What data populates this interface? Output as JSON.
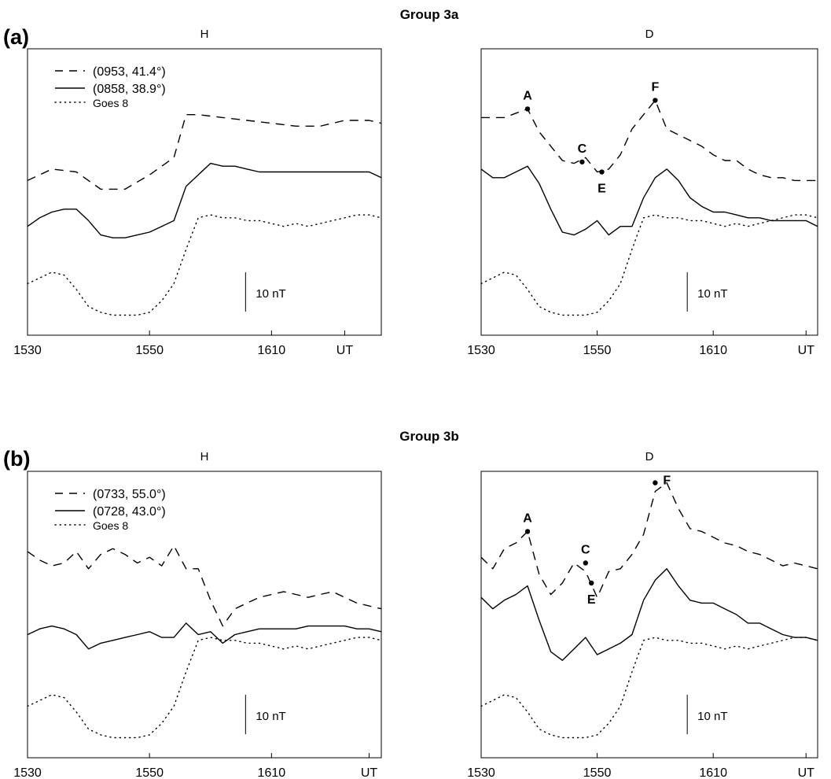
{
  "groups": [
    {
      "tag": "(a)",
      "title": "Group 3a",
      "legend": [
        {
          "label": "(0953, 41.4°)",
          "style": "dashed"
        },
        {
          "label": "(0858, 38.9°)",
          "style": "solid"
        },
        {
          "label": "Goes 8",
          "style": "dotted"
        }
      ]
    },
    {
      "tag": "(b)",
      "title": "Group 3b",
      "legend": [
        {
          "label": "(0733, 55.0°)",
          "style": "dashed"
        },
        {
          "label": "(0728, 43.0°)",
          "style": "solid"
        },
        {
          "label": "Goes 8",
          "style": "dotted"
        }
      ]
    }
  ],
  "chart_data": [
    {
      "type": "line",
      "group": "Group 3a",
      "title": "H",
      "xlim": [
        0,
        29
      ],
      "ylim": [
        0,
        100
      ],
      "x_ticks": [
        {
          "x": 0,
          "label": "1530"
        },
        {
          "x": 10,
          "label": "1550"
        },
        {
          "x": 20,
          "label": "1610"
        },
        {
          "x": 26,
          "label": "UT"
        }
      ],
      "scale_bar": "10 nT",
      "series": [
        {
          "name": "(0953, 41.4°)",
          "style": "dashed",
          "x": [
            0,
            2,
            4,
            6,
            8,
            10,
            12,
            13,
            14,
            16,
            18,
            20,
            22,
            24,
            26,
            28,
            29
          ],
          "y": [
            54,
            58,
            57,
            51,
            51,
            56,
            62,
            77,
            77,
            76,
            75,
            74,
            73,
            73,
            75,
            75,
            74
          ]
        },
        {
          "name": "(0858, 38.9°)",
          "style": "solid",
          "x": [
            0,
            1,
            2,
            3,
            4,
            5,
            6,
            7,
            8,
            9,
            10,
            11,
            12,
            13,
            14,
            15,
            16,
            17,
            18,
            19,
            20,
            21,
            22,
            23,
            24,
            25,
            26,
            27,
            28,
            29
          ],
          "y": [
            38,
            41,
            43,
            44,
            44,
            40,
            35,
            34,
            34,
            35,
            36,
            38,
            40,
            52,
            56,
            60,
            59,
            59,
            58,
            57,
            57,
            57,
            57,
            57,
            57,
            57,
            57,
            57,
            57,
            55
          ]
        },
        {
          "name": "Goes 8",
          "style": "dotted",
          "x": [
            0,
            1,
            2,
            3,
            4,
            5,
            6,
            7,
            8,
            9,
            10,
            11,
            12,
            13,
            14,
            15,
            16,
            17,
            18,
            19,
            20,
            21,
            22,
            23,
            24,
            25,
            26,
            27,
            28,
            29
          ],
          "y": [
            18,
            20,
            22,
            21,
            16,
            10,
            8,
            7,
            7,
            7,
            8,
            12,
            18,
            30,
            41,
            42,
            41,
            41,
            40,
            40,
            39,
            38,
            39,
            38,
            39,
            40,
            41,
            42,
            42,
            41
          ]
        }
      ],
      "annotations": []
    },
    {
      "type": "line",
      "group": "Group 3a",
      "title": "D",
      "xlim": [
        0,
        29
      ],
      "ylim": [
        0,
        100
      ],
      "x_ticks": [
        {
          "x": 0,
          "label": "1530"
        },
        {
          "x": 10,
          "label": "1550"
        },
        {
          "x": 20,
          "label": "1610"
        },
        {
          "x": 28,
          "label": "UT"
        }
      ],
      "scale_bar": "10 nT",
      "series": [
        {
          "name": "(0953, 41.4°)",
          "style": "dashed",
          "x": [
            0,
            2,
            4,
            5,
            6,
            7,
            8,
            9,
            10,
            11,
            12,
            13,
            14,
            15,
            16,
            17,
            18,
            19,
            20,
            21,
            22,
            23,
            24,
            25,
            26,
            27,
            28,
            29
          ],
          "y": [
            76,
            76,
            79,
            71,
            66,
            61,
            60,
            62,
            57,
            58,
            63,
            72,
            77,
            82,
            72,
            70,
            68,
            66,
            63,
            61,
            61,
            58,
            56,
            55,
            55,
            54,
            54,
            54
          ]
        },
        {
          "name": "(0858, 38.9°)",
          "style": "solid",
          "x": [
            0,
            1,
            2,
            3,
            4,
            5,
            6,
            7,
            8,
            9,
            10,
            11,
            12,
            13,
            14,
            15,
            16,
            17,
            18,
            19,
            20,
            21,
            22,
            23,
            24,
            25,
            26,
            27,
            28,
            29
          ],
          "y": [
            58,
            55,
            55,
            57,
            59,
            53,
            44,
            36,
            35,
            37,
            40,
            35,
            38,
            38,
            48,
            55,
            58,
            54,
            48,
            45,
            43,
            43,
            42,
            41,
            41,
            40,
            40,
            40,
            40,
            38
          ]
        },
        {
          "name": "Goes 8",
          "style": "dotted",
          "x": [
            0,
            1,
            2,
            3,
            4,
            5,
            6,
            7,
            8,
            9,
            10,
            11,
            12,
            13,
            14,
            15,
            16,
            17,
            18,
            19,
            20,
            21,
            22,
            23,
            24,
            25,
            26,
            27,
            28,
            29
          ],
          "y": [
            18,
            20,
            22,
            21,
            16,
            10,
            8,
            7,
            7,
            7,
            8,
            12,
            18,
            30,
            41,
            42,
            41,
            41,
            40,
            40,
            39,
            38,
            39,
            38,
            39,
            40,
            41,
            42,
            42,
            41
          ]
        }
      ],
      "annotations": [
        {
          "text": "A",
          "x": 4,
          "y": 79,
          "side": "above"
        },
        {
          "text": "C",
          "x": 8.7,
          "y": 60.5,
          "side": "above"
        },
        {
          "text": "E",
          "x": 10.4,
          "y": 57,
          "side": "below"
        },
        {
          "text": "F",
          "x": 15,
          "y": 82,
          "side": "above"
        }
      ]
    },
    {
      "type": "line",
      "group": "Group 3b",
      "title": "H",
      "xlim": [
        0,
        29
      ],
      "ylim": [
        0,
        100
      ],
      "x_ticks": [
        {
          "x": 0,
          "label": "1530"
        },
        {
          "x": 10,
          "label": "1550"
        },
        {
          "x": 20,
          "label": "1610"
        },
        {
          "x": 28,
          "label": "UT"
        }
      ],
      "scale_bar": "10 nT",
      "series": [
        {
          "name": "(0733, 55.0°)",
          "style": "dashed",
          "x": [
            0,
            1,
            2,
            3,
            4,
            5,
            6,
            7,
            8,
            9,
            10,
            11,
            12,
            13,
            14,
            15,
            16,
            17,
            18,
            19,
            20,
            21,
            22,
            23,
            24,
            25,
            26,
            27,
            28,
            29
          ],
          "y": [
            72,
            69,
            67,
            68,
            72,
            66,
            71,
            73,
            71,
            68,
            70,
            67,
            74,
            66,
            66,
            55,
            46,
            52,
            54,
            56,
            57,
            58,
            57,
            56,
            57,
            58,
            56,
            54,
            53,
            52
          ]
        },
        {
          "name": "(0728, 43.0°)",
          "style": "solid",
          "x": [
            0,
            1,
            2,
            3,
            4,
            5,
            6,
            7,
            8,
            9,
            10,
            11,
            12,
            13,
            14,
            15,
            16,
            17,
            18,
            19,
            20,
            21,
            22,
            23,
            24,
            25,
            26,
            27,
            28,
            29
          ],
          "y": [
            43,
            45,
            46,
            45,
            43,
            38,
            40,
            41,
            42,
            43,
            44,
            42,
            42,
            47,
            43,
            44,
            40,
            43,
            44,
            45,
            45,
            45,
            45,
            46,
            46,
            46,
            46,
            45,
            45,
            44
          ]
        },
        {
          "name": "Goes 8",
          "style": "dotted",
          "x": [
            0,
            1,
            2,
            3,
            4,
            5,
            6,
            7,
            8,
            9,
            10,
            11,
            12,
            13,
            14,
            15,
            16,
            17,
            18,
            19,
            20,
            21,
            22,
            23,
            24,
            25,
            26,
            27,
            28,
            29
          ],
          "y": [
            18,
            20,
            22,
            21,
            16,
            10,
            8,
            7,
            7,
            7,
            8,
            12,
            18,
            30,
            41,
            42,
            41,
            41,
            40,
            40,
            39,
            38,
            39,
            38,
            39,
            40,
            41,
            42,
            42,
            41
          ]
        }
      ],
      "annotations": []
    },
    {
      "type": "line",
      "group": "Group 3b",
      "title": "D",
      "xlim": [
        0,
        29
      ],
      "ylim": [
        0,
        100
      ],
      "x_ticks": [
        {
          "x": 0,
          "label": "1530"
        },
        {
          "x": 10,
          "label": "1550"
        },
        {
          "x": 20,
          "label": "1610"
        },
        {
          "x": 28,
          "label": "UT"
        }
      ],
      "scale_bar": "10 nT",
      "series": [
        {
          "name": "(0733, 55.0°)",
          "style": "dashed",
          "x": [
            0,
            1,
            2,
            3,
            4,
            5,
            6,
            7,
            8,
            9,
            10,
            11,
            12,
            13,
            14,
            15,
            16,
            17,
            18,
            19,
            20,
            21,
            22,
            23,
            24,
            25,
            26,
            27,
            28,
            29
          ],
          "y": [
            70,
            66,
            73,
            75,
            79,
            64,
            57,
            61,
            68,
            65,
            56,
            65,
            66,
            71,
            78,
            93,
            96,
            87,
            80,
            79,
            77,
            75,
            74,
            72,
            71,
            69,
            67,
            68,
            67,
            66
          ]
        },
        {
          "name": "(0728, 43.0°)",
          "style": "solid",
          "x": [
            0,
            1,
            2,
            3,
            4,
            5,
            6,
            7,
            8,
            9,
            10,
            11,
            12,
            13,
            14,
            15,
            16,
            17,
            18,
            19,
            20,
            21,
            22,
            23,
            24,
            25,
            26,
            27,
            28,
            29
          ],
          "y": [
            56,
            52,
            55,
            57,
            60,
            48,
            37,
            34,
            38,
            42,
            36,
            38,
            40,
            43,
            55,
            62,
            66,
            60,
            55,
            54,
            54,
            52,
            50,
            47,
            47,
            45,
            43,
            42,
            42,
            41
          ]
        },
        {
          "name": "Goes 8",
          "style": "dotted",
          "x": [
            0,
            1,
            2,
            3,
            4,
            5,
            6,
            7,
            8,
            9,
            10,
            11,
            12,
            13,
            14,
            15,
            16,
            17,
            18,
            19,
            20,
            21,
            22,
            23,
            24,
            25,
            26,
            27,
            28,
            29
          ],
          "y": [
            18,
            20,
            22,
            21,
            16,
            10,
            8,
            7,
            7,
            7,
            8,
            12,
            18,
            30,
            41,
            42,
            41,
            41,
            40,
            40,
            39,
            38,
            39,
            38,
            39,
            40,
            41,
            42,
            42,
            41
          ]
        }
      ],
      "annotations": [
        {
          "text": "A",
          "x": 4,
          "y": 79,
          "side": "above"
        },
        {
          "text": "C",
          "x": 9,
          "y": 68,
          "side": "above"
        },
        {
          "text": "E",
          "x": 9.5,
          "y": 61,
          "side": "below"
        },
        {
          "text": "F",
          "x": 15,
          "y": 96,
          "side": "right"
        }
      ]
    }
  ]
}
